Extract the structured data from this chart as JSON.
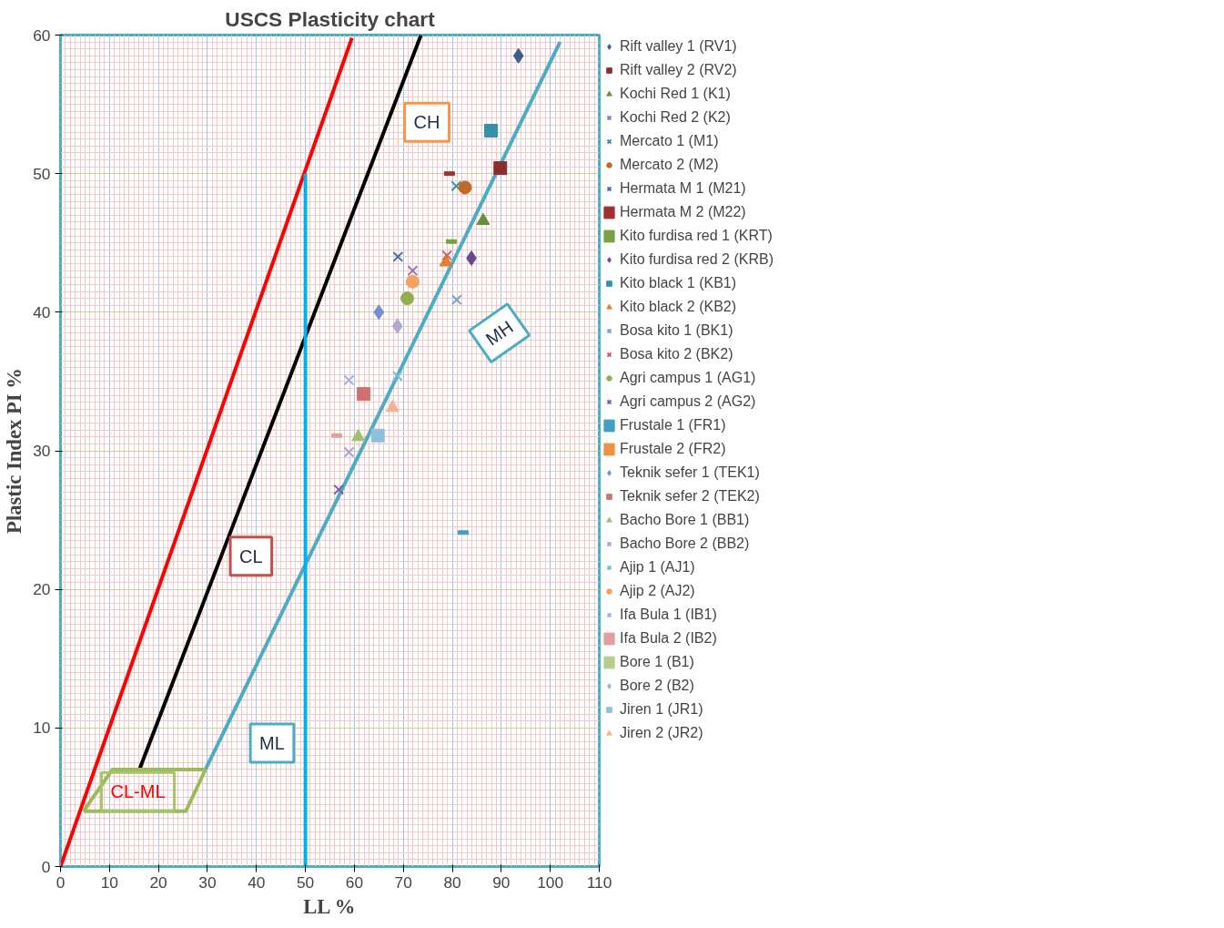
{
  "chart_data": {
    "type": "scatter",
    "title": "USCS Plasticity chart",
    "xlabel": "LL %",
    "ylabel": "Plastic Index PI %",
    "xlim": [
      0,
      110
    ],
    "xticks": [
      0,
      10,
      20,
      30,
      40,
      50,
      60,
      70,
      80,
      90,
      100,
      110
    ],
    "ylim": [
      0,
      60
    ],
    "yticks": [
      0,
      10,
      20,
      30,
      40,
      50,
      60
    ],
    "grid": true,
    "legend": "right",
    "series": [
      {
        "type": "line",
        "color": "#ff0000",
        "x": [
          0,
          59.5
        ],
        "values": [
          0,
          59.8
        ]
      },
      {
        "type": "line",
        "color": "#000000",
        "x": [
          16,
          73.6
        ],
        "values": [
          6.9,
          60
        ]
      },
      {
        "type": "line",
        "color": "#4bacc6",
        "x": [
          29.6,
          102
        ],
        "values": [
          7,
          59.5
        ]
      },
      {
        "type": "line",
        "color": "#00b0f0",
        "x": [
          50,
          50
        ],
        "values": [
          0,
          50
        ]
      },
      {
        "type": "line",
        "color": "#9bbb59",
        "x": [
          4.7,
          10.6,
          29.6
        ],
        "values": [
          4,
          7,
          7
        ]
      },
      {
        "type": "line",
        "color": "#9bbb59",
        "x": [
          4.7,
          25.6,
          29.6
        ],
        "values": [
          4,
          4,
          7
        ]
      },
      {
        "name": "Rift valley 1 (RV1)",
        "marker": "diamond",
        "color": "#3a5f8f",
        "x": [
          93.5
        ],
        "values": [
          58.5
        ]
      },
      {
        "name": "Rift valley 2 (RV2)",
        "marker": "square",
        "color": "#8b2e2e",
        "x": [
          89.8
        ],
        "values": [
          50.4
        ]
      },
      {
        "name": "Kochi Red 1 (K1)",
        "marker": "triangle",
        "color": "#6b8e3a",
        "x": [
          86.3
        ],
        "values": [
          46.6
        ]
      },
      {
        "name": "Kochi Red 2 (K2)",
        "marker": "cross",
        "color": "#8e7bb0",
        "x": [
          71.9
        ],
        "values": [
          43
        ]
      },
      {
        "name": "Mercato 1 (M1)",
        "marker": "cross",
        "color": "#3e8fa0",
        "x": [
          80.8
        ],
        "values": [
          49.1
        ]
      },
      {
        "name": "Mercato 2 (M2)",
        "marker": "circle",
        "color": "#c06a2a",
        "x": [
          82.6
        ],
        "values": [
          49
        ]
      },
      {
        "name": "Hermata M 1 (M21)",
        "marker": "cross",
        "color": "#4a6fa5",
        "x": [
          68.9
        ],
        "values": [
          44
        ]
      },
      {
        "name": "Hermata M 2 (M22)",
        "color": "#a03030",
        "x": [
          79.4
        ],
        "values": [
          50
        ]
      },
      {
        "name": "Kito furdisa red 1 (KRT)",
        "color": "#7aa040",
        "x": [
          79.8
        ],
        "values": [
          45.1
        ]
      },
      {
        "name": "Kito furdisa red 2 (KRB)",
        "marker": "diamond",
        "color": "#6a4a8f",
        "x": [
          83.9
        ],
        "values": [
          43.9
        ]
      },
      {
        "name": "Kito black 1 (KB1)",
        "marker": "square",
        "color": "#3590a8",
        "x": [
          87.9
        ],
        "values": [
          53.1
        ]
      },
      {
        "name": "Kito black 2 (KB2)",
        "marker": "triangle",
        "color": "#e08030",
        "x": [
          78.7
        ],
        "values": [
          43.6
        ]
      },
      {
        "name": "Bosa kito 1 (BK1)",
        "marker": "cross",
        "color": "#7a9fd0",
        "x": [
          80.9
        ],
        "values": [
          40.9
        ]
      },
      {
        "name": "Bosa kito 2 (BK2)",
        "marker": "cross",
        "color": "#d06060",
        "x": [
          78.9
        ],
        "values": [
          44.1
        ]
      },
      {
        "name": "Agri campus 1 (AG1)",
        "marker": "circle",
        "color": "#90b050",
        "x": [
          70.8
        ],
        "values": [
          41
        ]
      },
      {
        "name": "Agri campus 2 (AG2)",
        "marker": "cross",
        "color": "#7a60a0",
        "x": [
          56.8
        ],
        "values": [
          27.2
        ]
      },
      {
        "name": "Frustale 1 (FR1)",
        "color": "#40a0c0",
        "x": [
          82.2
        ],
        "values": [
          24.1
        ]
      },
      {
        "name": "Frustale 2 (FR2)",
        "color": "#f09040",
        "x": [
          null
        ],
        "values": [
          null
        ]
      },
      {
        "name": "Teknik sefer 1 (TEK1)",
        "marker": "diamond",
        "color": "#7090d0",
        "x": [
          65
        ],
        "values": [
          40
        ]
      },
      {
        "name": "Teknik sefer 2 (TEK2)",
        "marker": "square",
        "color": "#d07070",
        "x": [
          61.9
        ],
        "values": [
          34.1
        ]
      },
      {
        "name": "Bacho Bore 1 (BB1)",
        "marker": "triangle",
        "color": "#a0c070",
        "x": [
          60.8
        ],
        "values": [
          31
        ]
      },
      {
        "name": "Bacho Bore 2 (BB2)",
        "marker": "cross",
        "color": "#b0a0d0",
        "x": [
          58.9
        ],
        "values": [
          29.9
        ]
      },
      {
        "name": "Ajip 1 (AJ1)",
        "marker": "cross",
        "color": "#70c0d0",
        "x": [
          68.8
        ],
        "values": [
          35.4
        ]
      },
      {
        "name": "Ajip 2 (AJ2)",
        "marker": "circle",
        "color": "#f5a060",
        "x": [
          71.9
        ],
        "values": [
          42.2
        ]
      },
      {
        "name": "Ifa Bula 1 (IB1)",
        "marker": "cross",
        "color": "#a0b0e0",
        "x": [
          58.9
        ],
        "values": [
          35.1
        ]
      },
      {
        "name": "Ifa Bula 2 (IB2)",
        "color": "#e0a0a0",
        "x": [
          56.4
        ],
        "values": [
          31.1
        ]
      },
      {
        "name": "Bore 1 (B1)",
        "color": "#b0d090",
        "x": [
          null
        ],
        "values": [
          null
        ]
      },
      {
        "name": "Bore 2 (B2)",
        "marker": "diamond",
        "color": "#b0a8d0",
        "x": [
          68.8
        ],
        "values": [
          39
        ]
      },
      {
        "name": "Jiren 1 (JR1)",
        "marker": "square",
        "color": "#90c0d8",
        "x": [
          64.8
        ],
        "values": [
          31.1
        ]
      },
      {
        "name": "Jiren 2 (JR2)",
        "marker": "triangle",
        "color": "#f5b090",
        "x": [
          67.8
        ],
        "values": [
          33.1
        ]
      }
    ],
    "annotations": [
      "CH",
      "CL",
      "ML",
      "MH",
      "CL-ML"
    ]
  }
}
